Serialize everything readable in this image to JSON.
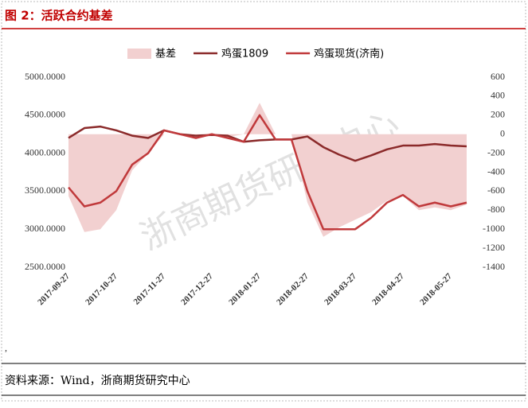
{
  "chart_data": {
    "type": "line",
    "title": "图 2：活跃合约基差",
    "note": ",",
    "source": "资料来源：Wind，浙商期货研究中心",
    "watermark": "浙商期货研究中心",
    "categories": [
      "2017-09-27",
      null,
      null,
      "2017-10-27",
      null,
      null,
      "2017-11-27",
      null,
      null,
      "2017-12-27",
      null,
      null,
      "2018-01-27",
      null,
      null,
      "2018-02-27",
      null,
      null,
      "2018-03-27",
      null,
      null,
      "2018-04-27",
      null,
      null,
      "2018-05-27",
      null
    ],
    "ylim": [
      2500,
      5000
    ],
    "yticks": [
      {
        "value": 2500,
        "label": "2500.0000"
      },
      {
        "value": 3000,
        "label": "3000.0000"
      },
      {
        "value": 3500,
        "label": "3500.0000"
      },
      {
        "value": 4000,
        "label": "4000.0000"
      },
      {
        "value": 4500,
        "label": "4500.0000"
      },
      {
        "value": 5000,
        "label": "5000.0000"
      }
    ],
    "y2lim": [
      -1400,
      600
    ],
    "y2ticks": [
      -1400,
      -1200,
      -1000,
      -800,
      -600,
      -400,
      -200,
      0,
      200,
      400,
      600
    ],
    "legend": "top",
    "series": [
      {
        "name": "基差",
        "type": "area",
        "axis": "y2",
        "color": "#f2d0d0",
        "values": [
          -650,
          -1030,
          -1000,
          -800,
          -380,
          -200,
          0,
          0,
          -30,
          10,
          -30,
          0,
          330,
          0,
          0,
          -720,
          -1080,
          -980,
          -900,
          -820,
          -700,
          -650,
          -800,
          -770,
          -800,
          -740
        ]
      },
      {
        "name": "鸡蛋1809",
        "type": "line",
        "color": "#8b2a2a",
        "values": [
          4200,
          4330,
          4350,
          4300,
          4230,
          4200,
          4300,
          4250,
          4230,
          4240,
          4230,
          4150,
          4170,
          4180,
          4180,
          4220,
          4080,
          3980,
          3900,
          3970,
          4050,
          4100,
          4100,
          4120,
          4100,
          4090
        ]
      },
      {
        "name": "鸡蛋现货(济南)",
        "type": "line",
        "color": "#c0393b",
        "values": [
          3550,
          3300,
          3350,
          3500,
          3850,
          4000,
          4300,
          4250,
          4200,
          4250,
          4200,
          4150,
          4500,
          4180,
          4180,
          3500,
          3000,
          3000,
          3000,
          3150,
          3350,
          3450,
          3300,
          3350,
          3300,
          3350
        ]
      }
    ]
  }
}
